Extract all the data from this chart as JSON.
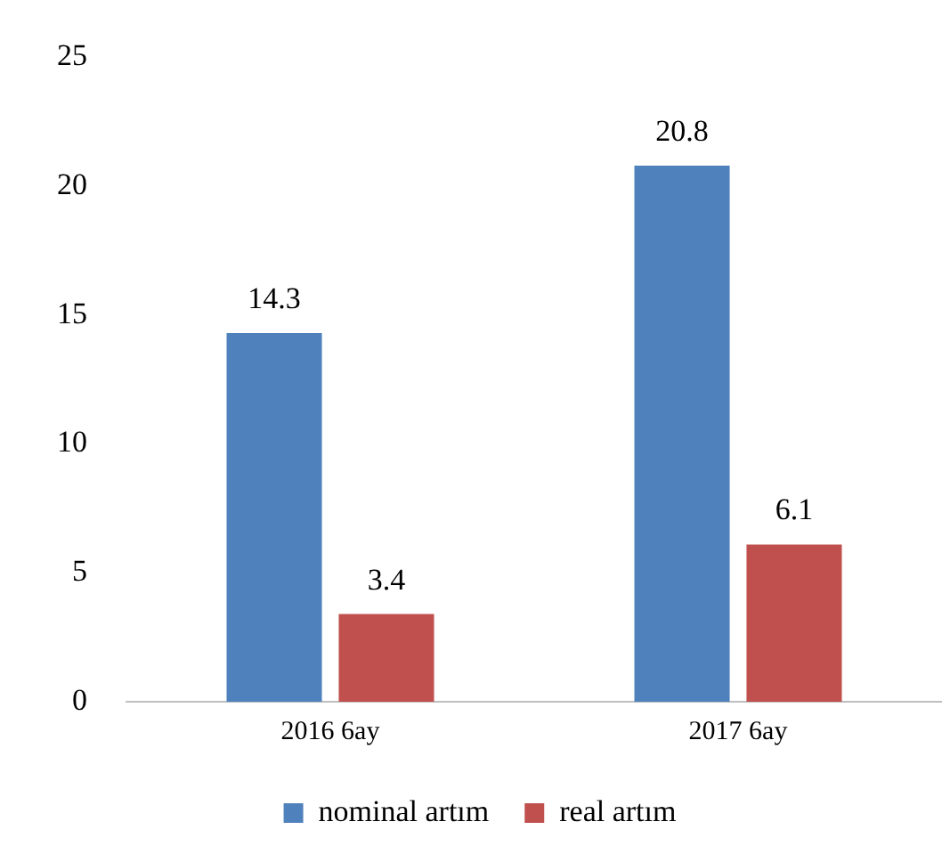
{
  "chart_data": {
    "type": "bar",
    "categories": [
      "2016 6ay",
      "2017 6ay"
    ],
    "series": [
      {
        "name": "nominal artım",
        "color": "#4f81bd",
        "values": [
          14.3,
          20.8
        ]
      },
      {
        "name": "real artım",
        "color": "#c0504d",
        "values": [
          3.4,
          6.1
        ]
      }
    ],
    "ylim": [
      0,
      25
    ],
    "yticks": [
      0,
      5,
      10,
      15,
      20,
      25
    ],
    "grid": false,
    "legend": "bottom",
    "data_labels": true
  }
}
